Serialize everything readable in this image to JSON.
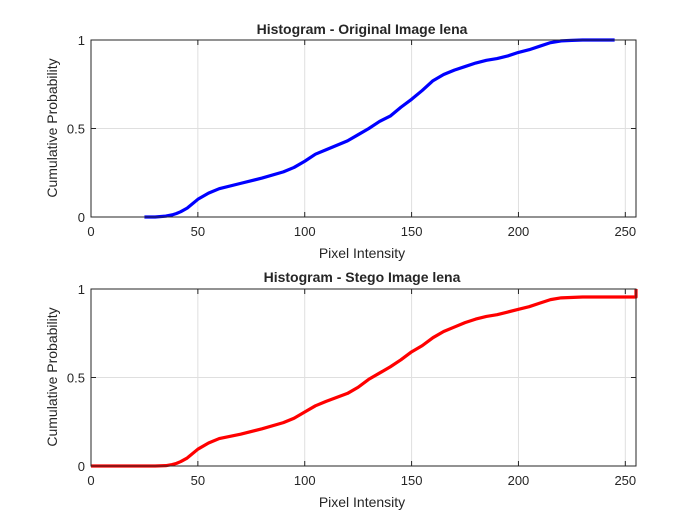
{
  "chart_data": [
    {
      "type": "line",
      "title": "Histogram - Original Image lena",
      "xlabel": "Pixel Intensity",
      "ylabel": "Cumulative Probability",
      "xlim": [
        0,
        255
      ],
      "ylim": [
        0,
        1
      ],
      "xticks": [
        "0",
        "50",
        "100",
        "150",
        "200",
        "250"
      ],
      "yticks": [
        "0",
        "0.5",
        "1"
      ],
      "grid": true,
      "color": "#0000ff",
      "series": [
        {
          "x": [
            25,
            30,
            35,
            38,
            40,
            42,
            45,
            50,
            55,
            60,
            70,
            80,
            90,
            95,
            100,
            105,
            110,
            120,
            125,
            130,
            135,
            140,
            145,
            150,
            155,
            160,
            165,
            170,
            175,
            180,
            185,
            190,
            195,
            200,
            205,
            210,
            215,
            220,
            225,
            230,
            235,
            240,
            245
          ],
          "values": [
            0,
            0,
            0.005,
            0.012,
            0.02,
            0.03,
            0.05,
            0.1,
            0.135,
            0.16,
            0.19,
            0.22,
            0.255,
            0.28,
            0.315,
            0.355,
            0.38,
            0.43,
            0.465,
            0.5,
            0.54,
            0.57,
            0.62,
            0.665,
            0.715,
            0.77,
            0.805,
            0.83,
            0.85,
            0.87,
            0.885,
            0.895,
            0.91,
            0.93,
            0.945,
            0.965,
            0.985,
            0.995,
            0.998,
            1,
            1,
            1,
            1
          ]
        }
      ]
    },
    {
      "type": "line",
      "title": "Histogram - Stego Image lena",
      "xlabel": "Pixel Intensity",
      "ylabel": "Cumulative Probability",
      "xlim": [
        0,
        255
      ],
      "ylim": [
        0,
        1
      ],
      "xticks": [
        "0",
        "50",
        "100",
        "150",
        "200",
        "250"
      ],
      "yticks": [
        "0",
        "0.5",
        "1"
      ],
      "grid": true,
      "color": "#ff0000",
      "series": [
        {
          "x": [
            0,
            20,
            30,
            35,
            38,
            40,
            42,
            45,
            50,
            55,
            60,
            70,
            80,
            90,
            95,
            100,
            105,
            110,
            120,
            125,
            130,
            135,
            140,
            145,
            150,
            155,
            160,
            165,
            170,
            175,
            180,
            185,
            190,
            195,
            200,
            205,
            210,
            215,
            220,
            230,
            240,
            254,
            255,
            255
          ],
          "values": [
            0,
            0,
            0,
            0.002,
            0.008,
            0.015,
            0.025,
            0.045,
            0.095,
            0.13,
            0.155,
            0.18,
            0.21,
            0.245,
            0.27,
            0.305,
            0.34,
            0.365,
            0.41,
            0.445,
            0.49,
            0.525,
            0.56,
            0.6,
            0.645,
            0.68,
            0.725,
            0.76,
            0.785,
            0.81,
            0.83,
            0.845,
            0.855,
            0.87,
            0.885,
            0.9,
            0.92,
            0.94,
            0.95,
            0.955,
            0.955,
            0.955,
            0.955,
            1
          ]
        }
      ]
    }
  ]
}
